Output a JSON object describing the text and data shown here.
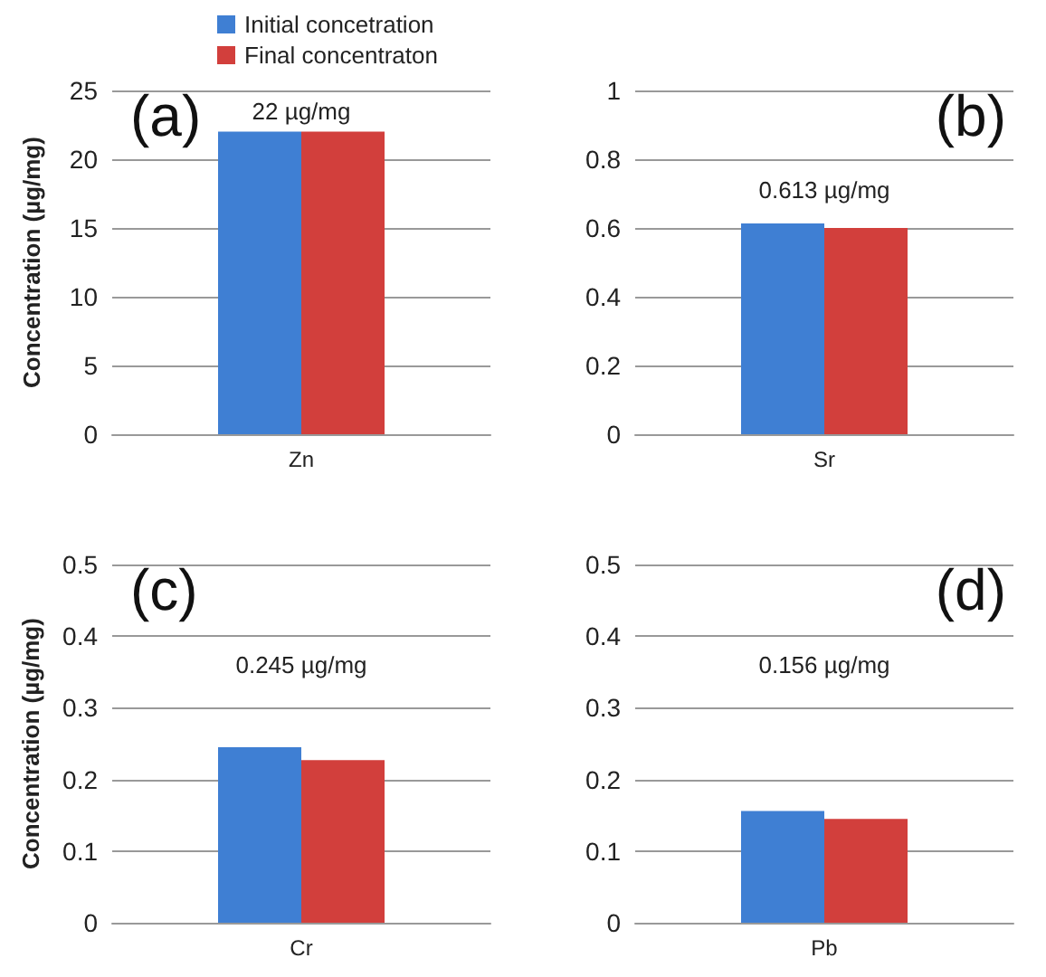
{
  "chart_data": [
    {
      "type": "bar",
      "categories": [
        "Zn"
      ],
      "ylabel": "Concentration (µg/mg)",
      "ylim": [
        0,
        25
      ],
      "yticks": [
        0,
        5,
        10,
        15,
        20,
        25
      ],
      "grid": "y",
      "legend": "top",
      "annotations": [
        "(a)",
        "22 µg/mg"
      ],
      "series": [
        {
          "name": "Initial concetration",
          "color": "#3f7fd3",
          "values": [
            22
          ]
        },
        {
          "name": "Final concentraton",
          "color": "#d23f3c",
          "values": [
            22
          ]
        }
      ]
    },
    {
      "type": "bar",
      "categories": [
        "Sr"
      ],
      "ylim": [
        0,
        1
      ],
      "yticks": [
        0,
        0.2,
        0.4,
        0.6,
        0.8,
        1
      ],
      "grid": "y",
      "annotations": [
        "(b)",
        "0.613 µg/mg"
      ],
      "series": [
        {
          "color": "#3f7fd3",
          "values": [
            0.613
          ]
        },
        {
          "color": "#d23f3c",
          "values": [
            0.6
          ]
        }
      ]
    },
    {
      "type": "bar",
      "categories": [
        "Cr"
      ],
      "ylabel": "Concentration (µg/mg)",
      "ylim": [
        0,
        0.5
      ],
      "yticks": [
        0,
        0.1,
        0.2,
        0.3,
        0.4,
        0.5
      ],
      "grid": "y",
      "annotations": [
        "(c)",
        "0.245 µg/mg"
      ],
      "series": [
        {
          "color": "#3f7fd3",
          "values": [
            0.245
          ]
        },
        {
          "color": "#d23f3c",
          "values": [
            0.227
          ]
        }
      ]
    },
    {
      "type": "bar",
      "categories": [
        "Pb"
      ],
      "ylim": [
        0,
        0.5
      ],
      "yticks": [
        0,
        0.1,
        0.2,
        0.3,
        0.4,
        0.5
      ],
      "grid": "y",
      "annotations": [
        "(d)",
        "0.156 µg/mg"
      ],
      "series": [
        {
          "color": "#3f7fd3",
          "values": [
            0.156
          ]
        },
        {
          "color": "#d23f3c",
          "values": [
            0.145
          ]
        }
      ]
    }
  ]
}
